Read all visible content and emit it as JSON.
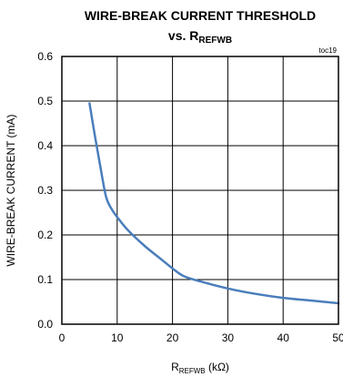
{
  "chart_data": {
    "type": "line",
    "title": "WIRE-BREAK CURRENT THRESHOLD",
    "subtitle": {
      "prefix": "vs. R",
      "subscript": "REFWB"
    },
    "tag": "toc19",
    "xlabel": {
      "prefix": "R",
      "subscript": "REFWB",
      "suffix": " (kΩ)"
    },
    "ylabel": "WIRE-BREAK CURRENT (mA)",
    "xlim": [
      0,
      50
    ],
    "ylim": [
      0.0,
      0.6
    ],
    "x_ticks": [
      "0",
      "10",
      "20",
      "30",
      "40",
      "50"
    ],
    "y_ticks": [
      "0.0",
      "0.1",
      "0.2",
      "0.3",
      "0.4",
      "0.5",
      "0.6"
    ],
    "grid": true,
    "line_color": "#4a7ebb",
    "x": [
      5,
      6,
      7,
      8,
      9,
      10,
      12,
      15,
      18,
      20,
      22,
      25,
      30,
      35,
      40,
      45,
      50
    ],
    "y": [
      0.495,
      0.42,
      0.35,
      0.285,
      0.258,
      0.24,
      0.21,
      0.175,
      0.145,
      0.125,
      0.108,
      0.096,
      0.08,
      0.068,
      0.059,
      0.053,
      0.047
    ]
  }
}
